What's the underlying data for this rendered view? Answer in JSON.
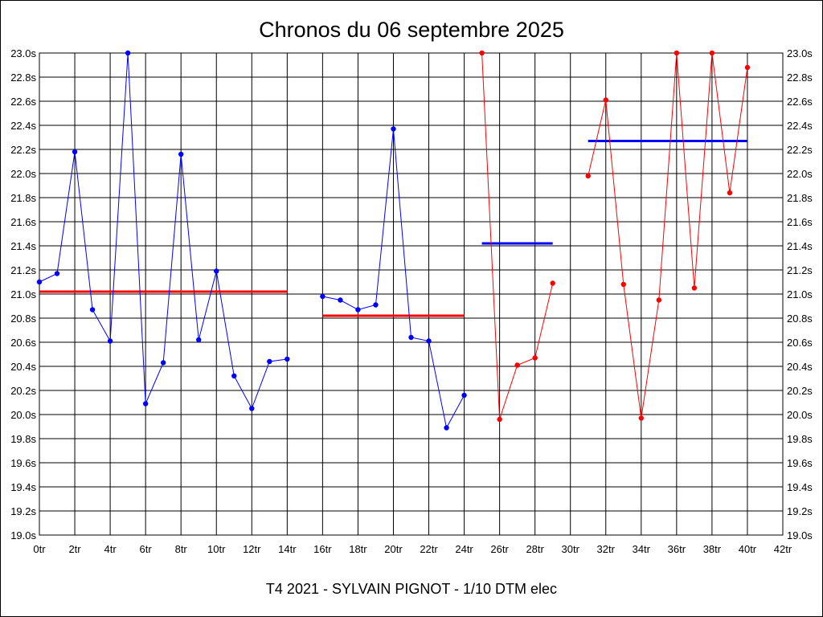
{
  "chart_data": {
    "type": "line",
    "title": "Chronos du 06 septembre 2025",
    "footer": "T4 2021 - SYLVAIN PIGNOT - 1/10 DTM elec",
    "xlabel": "",
    "ylabel": "",
    "xlim": [
      0,
      42
    ],
    "ylim": [
      19.0,
      23.0
    ],
    "grid": true,
    "x_ticks": [
      "0tr",
      "2tr",
      "4tr",
      "6tr",
      "8tr",
      "10tr",
      "12tr",
      "14tr",
      "16tr",
      "18tr",
      "20tr",
      "22tr",
      "24tr",
      "26tr",
      "28tr",
      "30tr",
      "32tr",
      "34tr",
      "36tr",
      "38tr",
      "40tr",
      "42tr"
    ],
    "y_ticks": [
      "19.0s",
      "19.2s",
      "19.4s",
      "19.6s",
      "19.8s",
      "20.0s",
      "20.2s",
      "20.4s",
      "20.6s",
      "20.8s",
      "21.0s",
      "21.2s",
      "21.4s",
      "21.6s",
      "21.8s",
      "22.0s",
      "22.2s",
      "22.4s",
      "22.6s",
      "22.8s",
      "23.0s"
    ],
    "series": [
      {
        "color": "#0000ff",
        "x": [
          0,
          1,
          2,
          3,
          4,
          5,
          6,
          7,
          8,
          9,
          10,
          11,
          12,
          13,
          14
        ],
        "y": [
          21.1,
          21.17,
          22.18,
          20.87,
          20.61,
          23.0,
          20.09,
          20.43,
          22.16,
          20.62,
          21.19,
          20.32,
          20.05,
          20.44,
          20.46
        ],
        "mean": 21.02,
        "mean_color": "#ff0000"
      },
      {
        "color": "#0000ff",
        "x": [
          16,
          17,
          18,
          19,
          20,
          21,
          22,
          23,
          24
        ],
        "y": [
          20.98,
          20.95,
          20.87,
          20.91,
          22.37,
          20.64,
          20.61,
          19.89,
          20.16
        ],
        "mean": 20.82,
        "mean_color": "#ff0000"
      },
      {
        "color": "#ff0000",
        "x": [
          25,
          26,
          27,
          28,
          29
        ],
        "y": [
          23.0,
          19.96,
          20.41,
          20.47,
          21.09
        ],
        "mean": 21.42,
        "mean_color": "#0000ff"
      },
      {
        "color": "#ff0000",
        "x": [
          31,
          32,
          33,
          34,
          35,
          36,
          37,
          38,
          39,
          40
        ],
        "y": [
          21.98,
          22.61,
          21.08,
          19.97,
          20.95,
          23.0,
          21.05,
          23.0,
          21.84,
          22.88
        ],
        "mean": 22.27,
        "mean_color": "#0000ff"
      }
    ]
  }
}
